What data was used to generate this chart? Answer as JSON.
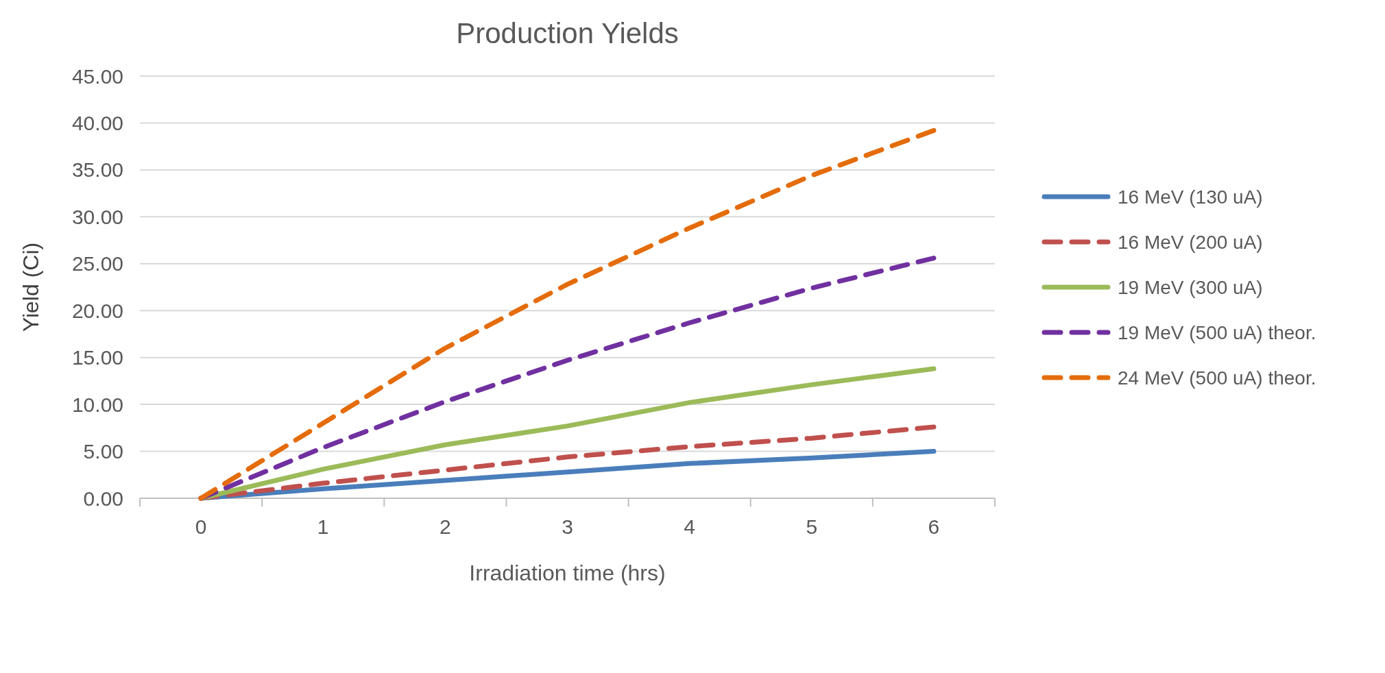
{
  "chart_data": {
    "type": "line",
    "title": "Production Yields",
    "xlabel": "Irradiation time (hrs)",
    "ylabel": "Yield (Ci)",
    "categories": [
      "0",
      "1",
      "2",
      "3",
      "4",
      "5",
      "6"
    ],
    "series": [
      {
        "name": "16 MeV (130 uA)",
        "color": "#4a7ebb",
        "line_style": "solid",
        "values": [
          0,
          1.0,
          1.9,
          2.8,
          3.7,
          4.3,
          5.0
        ]
      },
      {
        "name": "16 MeV (200 uA)",
        "color": "#c0504d",
        "line_style": "dashed",
        "values": [
          0,
          1.6,
          3.0,
          4.4,
          5.5,
          6.4,
          7.6
        ]
      },
      {
        "name": "19 MeV (300 uA)",
        "color": "#9bbb59",
        "line_style": "solid",
        "values": [
          0,
          3.1,
          5.7,
          7.7,
          10.2,
          12.1,
          13.8
        ]
      },
      {
        "name": "19 MeV (500 uA) theor.",
        "color": "#7030a0",
        "line_style": "dashed",
        "values": [
          0,
          5.4,
          10.3,
          14.7,
          18.7,
          22.4,
          25.6
        ]
      },
      {
        "name": "24 MeV (500 uA) theor.",
        "color": "#e46c0a",
        "line_style": "dashed",
        "values": [
          0,
          8.0,
          16.0,
          22.8,
          28.8,
          34.4,
          39.2
        ]
      }
    ],
    "ylim": [
      0,
      45
    ],
    "yticks": [
      {
        "value": 0,
        "label": "0.00"
      },
      {
        "value": 5,
        "label": "5.00"
      },
      {
        "value": 10,
        "label": "10.00"
      },
      {
        "value": 15,
        "label": "15.00"
      },
      {
        "value": 20,
        "label": "20.00"
      },
      {
        "value": 25,
        "label": "25.00"
      },
      {
        "value": 30,
        "label": "30.00"
      },
      {
        "value": 35,
        "label": "35.00"
      },
      {
        "value": 40,
        "label": "40.00"
      },
      {
        "value": 45,
        "label": "45.00"
      }
    ],
    "grid": "y",
    "legend": "right",
    "marker": "none"
  }
}
